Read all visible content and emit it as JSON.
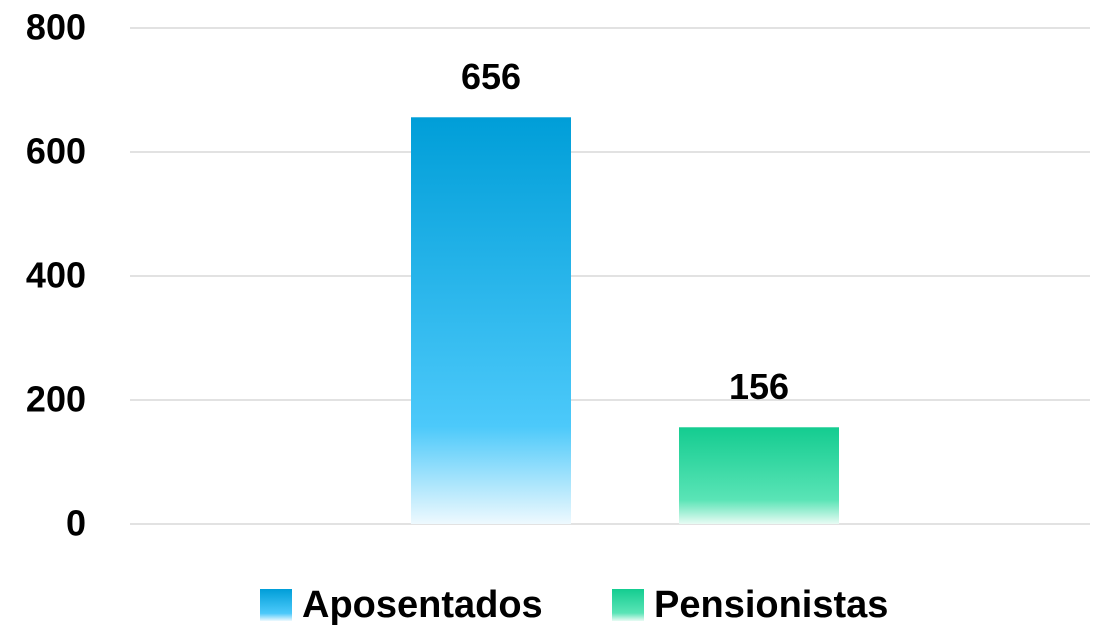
{
  "chart_data": {
    "type": "bar",
    "categories": [
      null
    ],
    "series": [
      {
        "name": "Aposentados",
        "color": "#00a0dc",
        "values": [
          656
        ]
      },
      {
        "name": "Pensionistas",
        "color": "#17cf92",
        "values": [
          156
        ]
      }
    ],
    "ylim": [
      0,
      800
    ],
    "yticks": [
      0,
      200,
      400,
      600,
      800
    ],
    "grid": true,
    "legend": "bottom"
  }
}
